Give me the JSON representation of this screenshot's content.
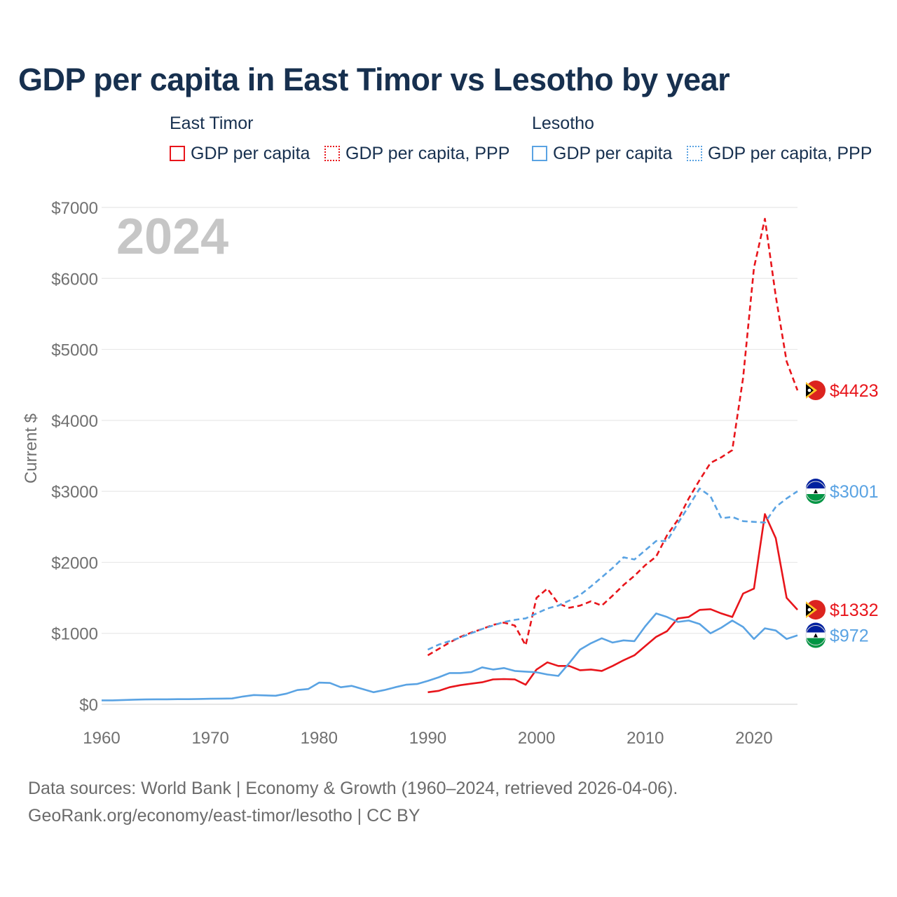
{
  "title": "GDP per capita in East Timor vs Lesotho by year",
  "legend": {
    "groups": [
      {
        "name": "East Timor",
        "color": "#e8151b",
        "items": [
          "GDP per capita",
          "GDP per capita, PPP"
        ]
      },
      {
        "name": "Lesotho",
        "color": "#5aa3e3",
        "items": [
          "GDP per capita",
          "GDP per capita, PPP"
        ]
      }
    ]
  },
  "source": {
    "line1": "Data sources: World Bank | Economy & Growth (1960–2024, retrieved 2026-04-06).",
    "line2": "GeoRank.org/economy/east-timor/lesotho | CC BY"
  },
  "chart_data": {
    "type": "line",
    "title": "GDP per capita in East Timor vs Lesotho by year",
    "year_label": "2024",
    "xlabel": "",
    "ylabel": "Current $",
    "xlim": [
      1960,
      2024
    ],
    "ylim": [
      0,
      7000
    ],
    "x_ticks": [
      1960,
      1970,
      1980,
      1990,
      2000,
      2010,
      2020
    ],
    "y_ticks": [
      0,
      1000,
      2000,
      3000,
      4000,
      5000,
      6000,
      7000
    ],
    "y_tick_labels": [
      "$0",
      "$1000",
      "$2000",
      "$3000",
      "$4000",
      "$5000",
      "$6000",
      "$7000"
    ],
    "grid": true,
    "series": [
      {
        "name": "East Timor GDP per capita",
        "country": "East Timor",
        "color": "#e8151b",
        "dashed": false,
        "end_label": "$1332",
        "x": [
          1990,
          1991,
          1992,
          1993,
          1994,
          1995,
          1996,
          1997,
          1998,
          1999,
          2000,
          2001,
          2002,
          2003,
          2004,
          2005,
          2006,
          2007,
          2008,
          2009,
          2010,
          2011,
          2012,
          2013,
          2014,
          2015,
          2016,
          2017,
          2018,
          2019,
          2020,
          2021,
          2022,
          2023,
          2024
        ],
        "values": [
          170,
          190,
          240,
          270,
          290,
          310,
          350,
          355,
          350,
          275,
          490,
          590,
          540,
          540,
          480,
          490,
          470,
          540,
          620,
          690,
          820,
          950,
          1030,
          1210,
          1230,
          1330,
          1340,
          1280,
          1230,
          1560,
          1630,
          2680,
          2340,
          1500,
          1332
        ]
      },
      {
        "name": "East Timor GDP per capita, PPP",
        "country": "East Timor",
        "color": "#e8151b",
        "dashed": true,
        "end_label": "$4423",
        "x": [
          1990,
          1991,
          1992,
          1993,
          1994,
          1995,
          1996,
          1997,
          1998,
          1999,
          2000,
          2001,
          2002,
          2003,
          2004,
          2005,
          2006,
          2007,
          2008,
          2009,
          2010,
          2011,
          2012,
          2013,
          2014,
          2015,
          2016,
          2017,
          2018,
          2019,
          2020,
          2021,
          2022,
          2023,
          2024
        ],
        "values": [
          690,
          780,
          870,
          950,
          1010,
          1060,
          1120,
          1150,
          1110,
          830,
          1500,
          1630,
          1420,
          1360,
          1390,
          1450,
          1390,
          1530,
          1680,
          1810,
          1960,
          2080,
          2380,
          2600,
          2900,
          3160,
          3400,
          3480,
          3580,
          4600,
          6150,
          6840,
          5750,
          4830,
          4423
        ]
      },
      {
        "name": "Lesotho GDP per capita",
        "country": "Lesotho",
        "color": "#5aa3e3",
        "dashed": false,
        "end_label": "$972",
        "x": [
          1960,
          1961,
          1962,
          1963,
          1964,
          1965,
          1966,
          1967,
          1968,
          1969,
          1970,
          1971,
          1972,
          1973,
          1974,
          1975,
          1976,
          1977,
          1978,
          1979,
          1980,
          1981,
          1982,
          1983,
          1984,
          1985,
          1986,
          1987,
          1988,
          1989,
          1990,
          1991,
          1992,
          1993,
          1994,
          1995,
          1996,
          1997,
          1998,
          1999,
          2000,
          2001,
          2002,
          2003,
          2004,
          2005,
          2006,
          2007,
          2008,
          2009,
          2010,
          2011,
          2012,
          2013,
          2014,
          2015,
          2016,
          2017,
          2018,
          2019,
          2020,
          2021,
          2022,
          2023,
          2024
        ],
        "values": [
          55,
          55,
          60,
          65,
          68,
          70,
          70,
          72,
          72,
          75,
          78,
          80,
          82,
          110,
          130,
          125,
          120,
          150,
          200,
          215,
          305,
          300,
          240,
          260,
          215,
          170,
          200,
          240,
          275,
          285,
          330,
          380,
          440,
          440,
          455,
          520,
          490,
          510,
          470,
          460,
          450,
          420,
          400,
          580,
          770,
          860,
          930,
          870,
          900,
          890,
          1100,
          1280,
          1230,
          1160,
          1180,
          1130,
          1000,
          1080,
          1180,
          1090,
          920,
          1070,
          1040,
          920,
          972
        ]
      },
      {
        "name": "Lesotho GDP per capita, PPP",
        "country": "Lesotho",
        "color": "#5aa3e3",
        "dashed": true,
        "end_label": "$3001",
        "x": [
          1990,
          1991,
          1992,
          1993,
          1994,
          1995,
          1996,
          1997,
          1998,
          1999,
          2000,
          2001,
          2002,
          2003,
          2004,
          2005,
          2006,
          2007,
          2008,
          2009,
          2010,
          2011,
          2012,
          2013,
          2014,
          2015,
          2016,
          2017,
          2018,
          2019,
          2020,
          2021,
          2022,
          2023,
          2024
        ],
        "values": [
          770,
          840,
          890,
          940,
          1000,
          1060,
          1110,
          1160,
          1190,
          1210,
          1280,
          1350,
          1390,
          1460,
          1540,
          1660,
          1790,
          1920,
          2070,
          2040,
          2170,
          2300,
          2300,
          2550,
          2790,
          3040,
          2930,
          2620,
          2640,
          2580,
          2570,
          2560,
          2780,
          2900,
          3001
        ]
      }
    ]
  }
}
